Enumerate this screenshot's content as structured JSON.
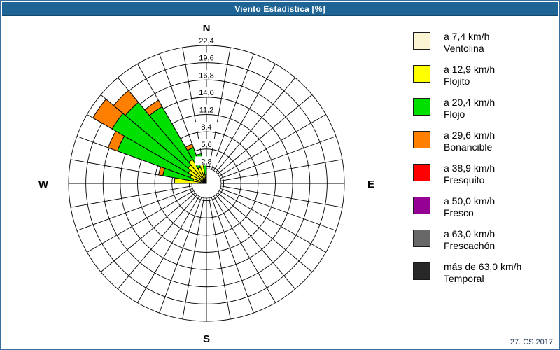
{
  "window": {
    "title": "Viento Estadística [%]",
    "footer": "27. CS 2017"
  },
  "colors": {
    "titlebar": "#1e6494",
    "frame": "#3c6e9f",
    "grid": "#000000",
    "background": "#ffffff"
  },
  "legend": {
    "items": [
      {
        "key": "ventolina",
        "color": "#fbf4d2",
        "speed": "a 7,4 km/h",
        "name": "Ventolina"
      },
      {
        "key": "flojito",
        "color": "#ffff00",
        "speed": "a 12,9 km/h",
        "name": "Flojito"
      },
      {
        "key": "flojo",
        "color": "#00e000",
        "speed": "a 20,4 km/h",
        "name": "Flojo"
      },
      {
        "key": "bonancible",
        "color": "#ff8000",
        "speed": "a 29,6 km/h",
        "name": "Bonancible"
      },
      {
        "key": "fresquito",
        "color": "#ff0000",
        "speed": "a 38,9 km/h",
        "name": "Fresquito"
      },
      {
        "key": "fresco",
        "color": "#950095",
        "speed": "a 50,0 km/h",
        "name": "Fresco"
      },
      {
        "key": "frescachon",
        "color": "#686868",
        "speed": "a 63,0 km/h",
        "name": "Frescachón"
      },
      {
        "key": "temporal",
        "color": "#282828",
        "speed": "más de 63,0 km/h",
        "name": "Temporal"
      }
    ]
  },
  "chart_data": {
    "type": "windrose-polar-stacked-bar",
    "title": "Viento Estadística [%]",
    "units": "%",
    "sector_width_deg": 10,
    "n_sectors": 36,
    "grid": true,
    "radial_axis": {
      "min": 0,
      "max": 22.4,
      "step": 2.8,
      "tick_values": [
        2.8,
        5.6,
        8.4,
        11.2,
        14.0,
        16.8,
        19.6,
        22.4
      ],
      "tick_labels": [
        "2,8",
        "5,6",
        "8,4",
        "11,2",
        "14,0",
        "16,8",
        "19,6",
        "22,4"
      ]
    },
    "compass_labels": {
      "north": "N",
      "east": "E",
      "south": "S",
      "west": "W"
    },
    "series_order": [
      "ventolina",
      "flojito",
      "flojo",
      "bonancible",
      "fresquito",
      "fresco",
      "frescachon",
      "temporal"
    ],
    "sectors": [
      {
        "from_deg": 270,
        "to_deg": 280,
        "values": {
          "ventolina": 0.4,
          "flojito": 4.8,
          "flojo": 0.0,
          "bonancible": 0.0
        }
      },
      {
        "from_deg": 280,
        "to_deg": 290,
        "values": {
          "ventolina": 0.4,
          "flojito": 1.8,
          "flojo": 5.0,
          "bonancible": 0.7
        }
      },
      {
        "from_deg": 290,
        "to_deg": 300,
        "values": {
          "ventolina": 0.4,
          "flojito": 2.4,
          "flojo": 12.6,
          "bonancible": 1.6
        }
      },
      {
        "from_deg": 300,
        "to_deg": 310,
        "values": {
          "ventolina": 0.4,
          "flojito": 3.0,
          "flojo": 14.3,
          "bonancible": 3.6
        }
      },
      {
        "from_deg": 310,
        "to_deg": 320,
        "values": {
          "ventolina": 0.4,
          "flojito": 3.5,
          "flojo": 13.3,
          "bonancible": 2.5
        }
      },
      {
        "from_deg": 320,
        "to_deg": 330,
        "values": {
          "ventolina": 0.4,
          "flojito": 4.1,
          "flojo": 9.9,
          "bonancible": 1.2
        }
      },
      {
        "from_deg": 330,
        "to_deg": 340,
        "values": {
          "ventolina": 0.4,
          "flojito": 2.4,
          "flojo": 3.4,
          "bonancible": 0.6
        }
      },
      {
        "from_deg": 340,
        "to_deg": 350,
        "values": {
          "ventolina": 0.4,
          "flojito": 3.9,
          "flojo": 0.6,
          "bonancible": 0.0
        }
      },
      {
        "from_deg": 350,
        "to_deg": 360,
        "values": {
          "ventolina": 0.3,
          "flojito": 1.1,
          "flojo": 2.5,
          "bonancible": 0.0
        }
      }
    ]
  }
}
